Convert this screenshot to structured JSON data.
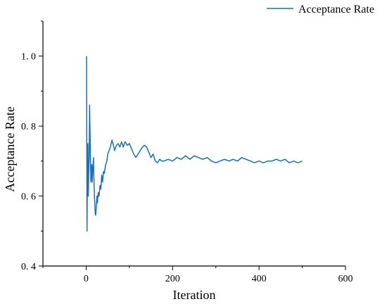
{
  "chart_data": {
    "type": "line",
    "xlabel": "Iteration",
    "ylabel": "Acceptance Rate",
    "xlim": [
      -100,
      600
    ],
    "ylim": [
      0.4,
      1.1
    ],
    "x_ticks": [
      0,
      200,
      400,
      600
    ],
    "y_ticks": [
      0.4,
      0.6,
      0.8,
      1.0
    ],
    "x_tick_labels": [
      "0",
      "200",
      "400",
      "600"
    ],
    "y_tick_labels": [
      "0. 4",
      "0. 6",
      "0. 8",
      "1. 0"
    ],
    "legend_placement": "top-right",
    "grid": false,
    "series": [
      {
        "name": "Acceptance Rate",
        "color": "#1f6fb0",
        "x": [
          1,
          2,
          3,
          4,
          5,
          6,
          7,
          8,
          9,
          10,
          11,
          12,
          13,
          14,
          15,
          16,
          17,
          18,
          19,
          20,
          21,
          22,
          23,
          24,
          25,
          26,
          28,
          30,
          32,
          34,
          36,
          38,
          40,
          42,
          45,
          48,
          50,
          53,
          56,
          60,
          63,
          66,
          70,
          74,
          78,
          82,
          86,
          90,
          95,
          100,
          105,
          110,
          115,
          120,
          125,
          130,
          135,
          140,
          145,
          150,
          155,
          160,
          165,
          170,
          175,
          180,
          190,
          200,
          210,
          220,
          230,
          240,
          250,
          260,
          270,
          280,
          290,
          300,
          310,
          320,
          330,
          340,
          350,
          360,
          370,
          380,
          390,
          400,
          410,
          420,
          430,
          440,
          450,
          460,
          470,
          480,
          490,
          500
        ],
        "y": [
          1.0,
          0.5,
          0.67,
          0.75,
          0.6,
          0.67,
          0.71,
          0.86,
          0.78,
          0.7,
          0.64,
          0.67,
          0.69,
          0.64,
          0.67,
          0.69,
          0.71,
          0.65,
          0.6,
          0.58,
          0.55,
          0.545,
          0.56,
          0.58,
          0.6,
          0.58,
          0.61,
          0.6,
          0.63,
          0.62,
          0.66,
          0.64,
          0.67,
          0.665,
          0.69,
          0.7,
          0.72,
          0.73,
          0.74,
          0.76,
          0.745,
          0.73,
          0.745,
          0.75,
          0.74,
          0.755,
          0.74,
          0.755,
          0.745,
          0.75,
          0.735,
          0.72,
          0.71,
          0.72,
          0.73,
          0.74,
          0.745,
          0.74,
          0.725,
          0.71,
          0.72,
          0.7,
          0.695,
          0.705,
          0.7,
          0.7,
          0.705,
          0.7,
          0.71,
          0.705,
          0.715,
          0.705,
          0.715,
          0.71,
          0.705,
          0.71,
          0.7,
          0.695,
          0.7,
          0.705,
          0.7,
          0.705,
          0.7,
          0.71,
          0.705,
          0.7,
          0.695,
          0.7,
          0.695,
          0.7,
          0.7,
          0.705,
          0.7,
          0.705,
          0.695,
          0.7,
          0.695,
          0.7
        ]
      }
    ]
  }
}
